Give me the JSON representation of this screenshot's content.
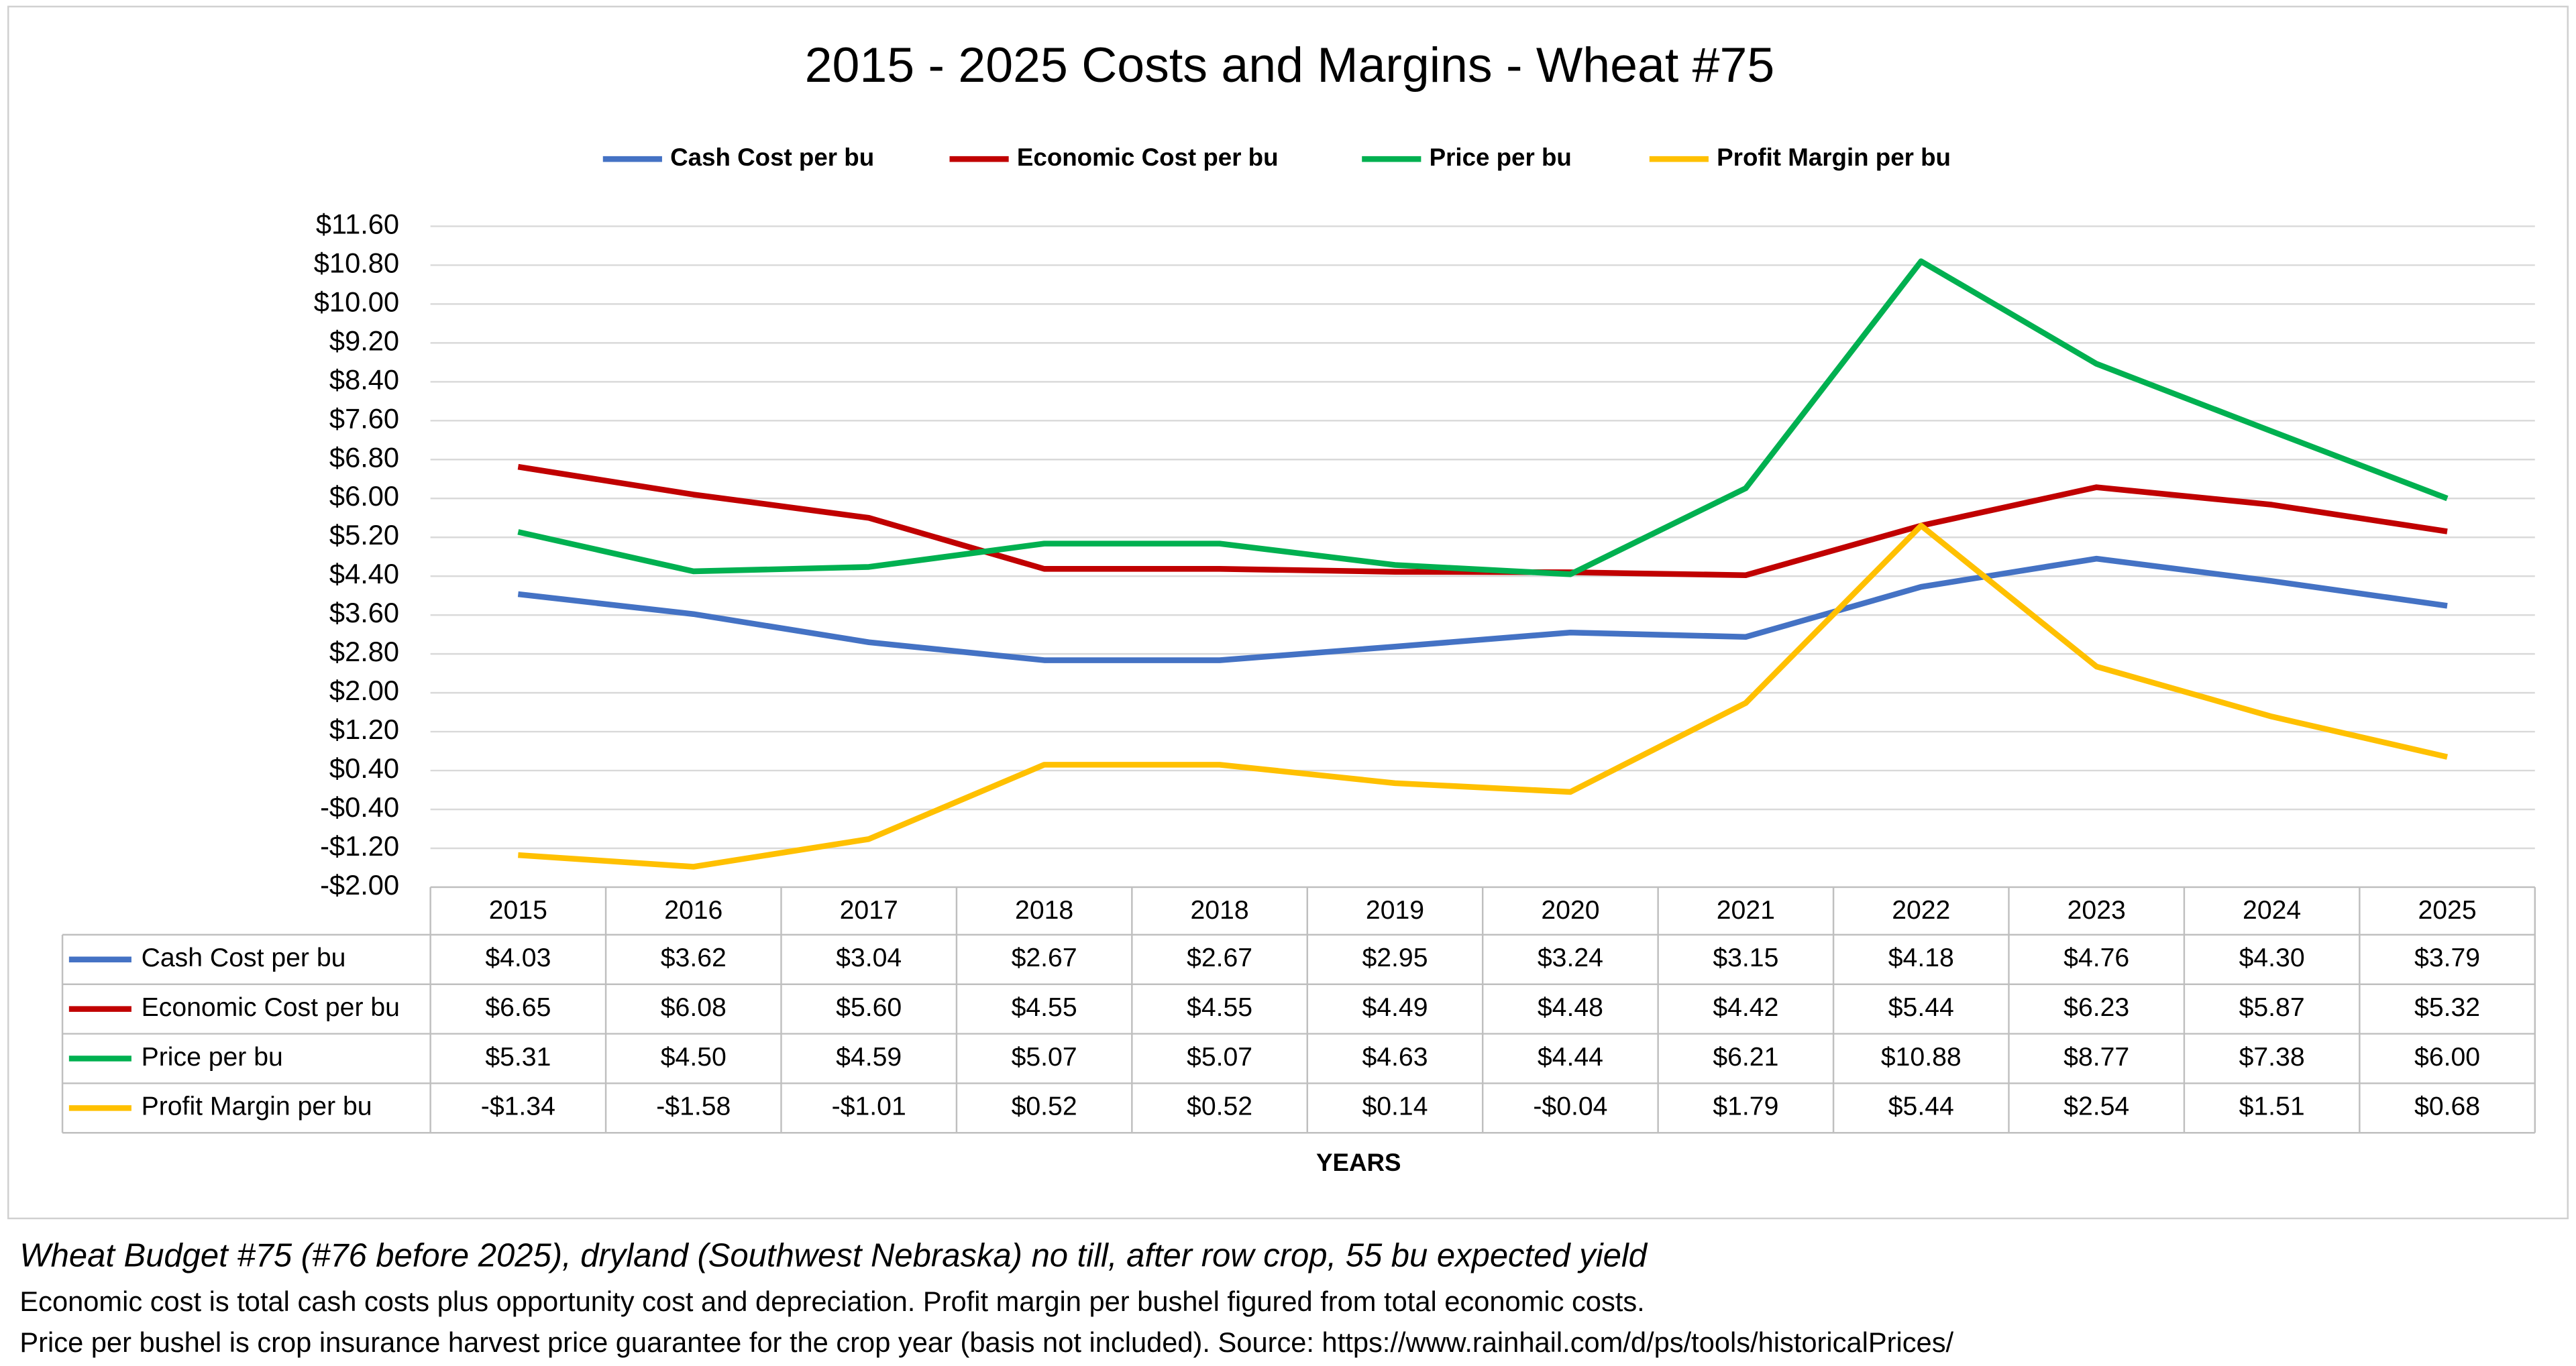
{
  "chart_data": {
    "type": "line",
    "title": "2015 - 2025 Costs and Margins - Wheat #75",
    "x_label": "YEARS",
    "categories": [
      "2015",
      "2016",
      "2017",
      "2018",
      "2018",
      "2019",
      "2020",
      "2021",
      "2022",
      "2023",
      "2024",
      "2025"
    ],
    "ylim": [
      -2.0,
      11.6
    ],
    "yticks": [
      {
        "value": 11.6,
        "label": "$11.60"
      },
      {
        "value": 10.8,
        "label": "$10.80"
      },
      {
        "value": 10.0,
        "label": "$10.00"
      },
      {
        "value": 9.2,
        "label": "$9.20"
      },
      {
        "value": 8.4,
        "label": "$8.40"
      },
      {
        "value": 7.6,
        "label": "$7.60"
      },
      {
        "value": 6.8,
        "label": "$6.80"
      },
      {
        "value": 6.0,
        "label": "$6.00"
      },
      {
        "value": 5.2,
        "label": "$5.20"
      },
      {
        "value": 4.4,
        "label": "$4.40"
      },
      {
        "value": 3.6,
        "label": "$3.60"
      },
      {
        "value": 2.8,
        "label": "$2.80"
      },
      {
        "value": 2.0,
        "label": "$2.00"
      },
      {
        "value": 1.2,
        "label": "$1.20"
      },
      {
        "value": 0.4,
        "label": "$0.40"
      },
      {
        "value": -0.4,
        "label": "-$0.40"
      },
      {
        "value": -1.2,
        "label": "-$1.20"
      },
      {
        "value": -2.0,
        "label": "-$2.00"
      }
    ],
    "grid": true,
    "legend": "top",
    "series": [
      {
        "name": "Cash Cost per bu",
        "color": "#4472c4",
        "values": [
          4.03,
          3.62,
          3.04,
          2.67,
          2.67,
          2.95,
          3.24,
          3.15,
          4.18,
          4.76,
          4.3,
          3.79
        ],
        "value_labels": [
          "$4.03",
          "$3.62",
          "$3.04",
          "$2.67",
          "$2.67",
          "$2.95",
          "$3.24",
          "$3.15",
          "$4.18",
          "$4.76",
          "$4.30",
          "$3.79"
        ]
      },
      {
        "name": "Economic Cost per bu",
        "color": "#c00000",
        "values": [
          6.65,
          6.08,
          5.6,
          4.55,
          4.55,
          4.49,
          4.48,
          4.42,
          5.44,
          6.23,
          5.87,
          5.32
        ],
        "value_labels": [
          "$6.65",
          "$6.08",
          "$5.60",
          "$4.55",
          "$4.55",
          "$4.49",
          "$4.48",
          "$4.42",
          "$5.44",
          "$6.23",
          "$5.87",
          "$5.32"
        ]
      },
      {
        "name": "Price per bu",
        "color": "#00b050",
        "values": [
          5.31,
          4.5,
          4.59,
          5.07,
          5.07,
          4.63,
          4.44,
          6.21,
          10.88,
          8.77,
          7.38,
          6.0
        ],
        "value_labels": [
          "$5.31",
          "$4.50",
          "$4.59",
          "$5.07",
          "$5.07",
          "$4.63",
          "$4.44",
          "$6.21",
          "$10.88",
          "$8.77",
          "$7.38",
          "$6.00"
        ]
      },
      {
        "name": "Profit Margin per bu",
        "color": "#ffc000",
        "values": [
          -1.34,
          -1.58,
          -1.01,
          0.52,
          0.52,
          0.14,
          -0.04,
          1.79,
          5.44,
          2.54,
          1.51,
          0.68
        ],
        "value_labels": [
          "-$1.34",
          "-$1.58",
          "-$1.01",
          "$0.52",
          "$0.52",
          "$0.14",
          "-$0.04",
          "$1.79",
          "$5.44",
          "$2.54",
          "$1.51",
          "$0.68"
        ]
      }
    ]
  },
  "notes": [
    "Wheat Budget #75 (#76 before 2025), dryland (Southwest Nebraska) no till, after row crop, 55 bu expected yield",
    "Economic cost is total cash costs plus opportunity cost and depreciation. Profit margin per bushel figured from total economic costs.",
    "Price per bushel is crop insurance harvest price guarantee for the crop year (basis not included).  Source: https://www.rainhail.com/d/ps/tools/historicalPrices/"
  ]
}
